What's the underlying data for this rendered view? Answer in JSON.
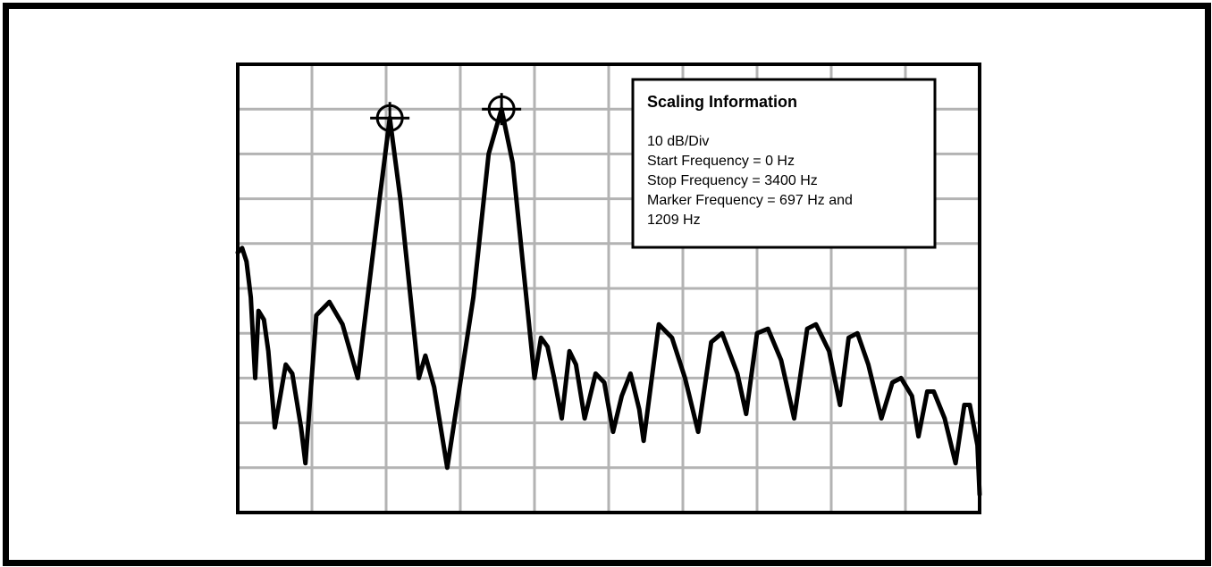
{
  "chart_data": {
    "type": "line",
    "title": "",
    "xlabel": "",
    "ylabel": "",
    "x_range": [
      0,
      3400
    ],
    "x_unit": "Hz",
    "y_range": [
      -100,
      0
    ],
    "y_unit": "dB",
    "grid": true,
    "grid_divisions": {
      "x": 10,
      "y": 10
    },
    "series": [
      {
        "values": [
          [
            0,
            -42
          ],
          [
            20,
            -41
          ],
          [
            40,
            -44
          ],
          [
            60,
            -52
          ],
          [
            80,
            -70
          ],
          [
            95,
            -55
          ],
          [
            120,
            -57
          ],
          [
            140,
            -64
          ],
          [
            170,
            -81
          ],
          [
            220,
            -67
          ],
          [
            250,
            -69
          ],
          [
            290,
            -81
          ],
          [
            310,
            -89
          ],
          [
            360,
            -56
          ],
          [
            420,
            -53
          ],
          [
            480,
            -58
          ],
          [
            550,
            -70
          ],
          [
            650,
            -30
          ],
          [
            697,
            -12
          ],
          [
            745,
            -30
          ],
          [
            830,
            -70
          ],
          [
            860,
            -65
          ],
          [
            900,
            -72
          ],
          [
            960,
            -90
          ],
          [
            1080,
            -52
          ],
          [
            1150,
            -20
          ],
          [
            1209,
            -10
          ],
          [
            1260,
            -22
          ],
          [
            1360,
            -70
          ],
          [
            1390,
            -61
          ],
          [
            1420,
            -63
          ],
          [
            1450,
            -70
          ],
          [
            1485,
            -79
          ],
          [
            1520,
            -64
          ],
          [
            1550,
            -67
          ],
          [
            1590,
            -79
          ],
          [
            1640,
            -69
          ],
          [
            1680,
            -71
          ],
          [
            1720,
            -82
          ],
          [
            1760,
            -74
          ],
          [
            1800,
            -69
          ],
          [
            1840,
            -77
          ],
          [
            1860,
            -84
          ],
          [
            1930,
            -58
          ],
          [
            1990,
            -61
          ],
          [
            2050,
            -70
          ],
          [
            2110,
            -82
          ],
          [
            2170,
            -62
          ],
          [
            2220,
            -60
          ],
          [
            2290,
            -69
          ],
          [
            2330,
            -78
          ],
          [
            2380,
            -60
          ],
          [
            2430,
            -59
          ],
          [
            2490,
            -66
          ],
          [
            2550,
            -79
          ],
          [
            2610,
            -59
          ],
          [
            2650,
            -58
          ],
          [
            2710,
            -64
          ],
          [
            2760,
            -76
          ],
          [
            2800,
            -61
          ],
          [
            2840,
            -60
          ],
          [
            2890,
            -67
          ],
          [
            2950,
            -79
          ],
          [
            3000,
            -71
          ],
          [
            3040,
            -70
          ],
          [
            3090,
            -74
          ],
          [
            3120,
            -83
          ],
          [
            3160,
            -73
          ],
          [
            3190,
            -73
          ],
          [
            3240,
            -79
          ],
          [
            3290,
            -89
          ],
          [
            3330,
            -76
          ],
          [
            3355,
            -76
          ],
          [
            3390,
            -85
          ],
          [
            3400,
            -96
          ]
        ]
      }
    ],
    "markers": [
      {
        "x": 697,
        "y": -12
      },
      {
        "x": 1209,
        "y": -10
      }
    ]
  },
  "info_box": {
    "title": "Scaling Information",
    "lines": [
      "10 dB/Div",
      "Start Frequency = 0 Hz",
      "Stop Frequency = 3400 Hz",
      "Marker Frequency = 697 Hz and",
      "1209 Hz"
    ]
  },
  "colors": {
    "grid": "#b3b3b3",
    "trace": "#000000",
    "frame": "#000000"
  }
}
